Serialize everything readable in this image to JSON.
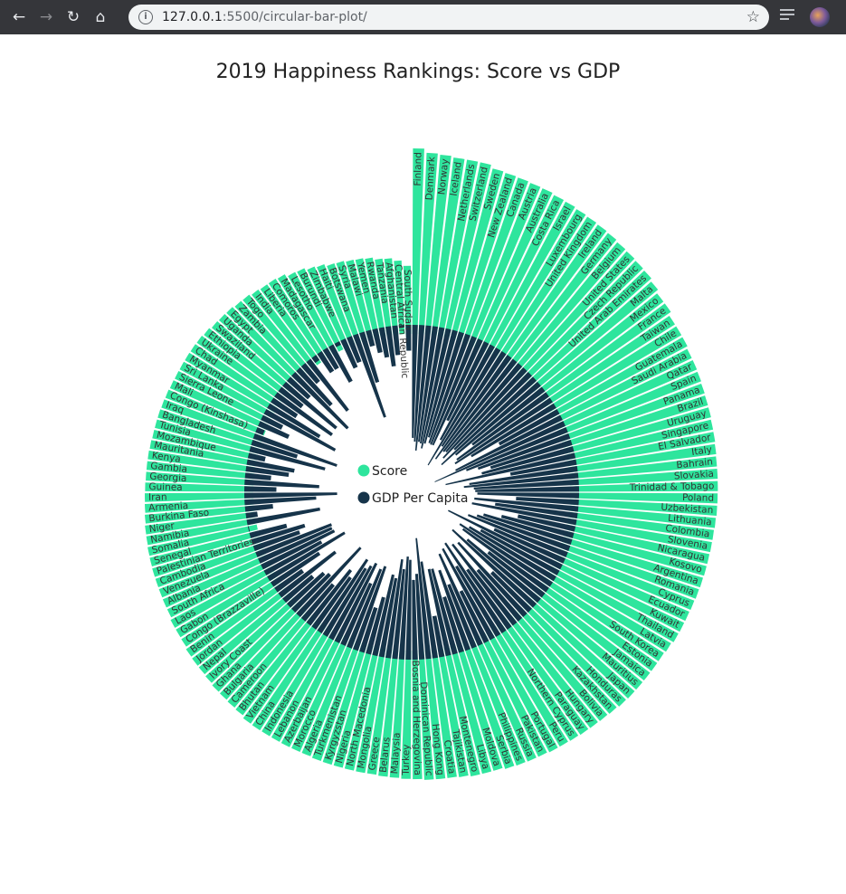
{
  "browser": {
    "url_host": "127.0.0.1",
    "url_path": ":5500/circular-bar-plot/"
  },
  "chart_data": {
    "type": "bar",
    "title": "2019 Happiness Rankings: Score vs GDP",
    "colors": {
      "score": "#2ee59d",
      "gdp": "#16344a"
    },
    "series": [
      {
        "name": "Score",
        "key": "score"
      },
      {
        "name": "GDP Per Capita",
        "key": "gdp"
      }
    ],
    "countries": [
      {
        "name": "Finland",
        "score": 7.769,
        "gdp": 1.34
      },
      {
        "name": "Denmark",
        "score": 7.6,
        "gdp": 1.383
      },
      {
        "name": "Norway",
        "score": 7.554,
        "gdp": 1.488
      },
      {
        "name": "Iceland",
        "score": 7.494,
        "gdp": 1.38
      },
      {
        "name": "Netherlands",
        "score": 7.488,
        "gdp": 1.396
      },
      {
        "name": "Switzerland",
        "score": 7.48,
        "gdp": 1.452
      },
      {
        "name": "Sweden",
        "score": 7.343,
        "gdp": 1.387
      },
      {
        "name": "New Zealand",
        "score": 7.307,
        "gdp": 1.303
      },
      {
        "name": "Canada",
        "score": 7.278,
        "gdp": 1.365
      },
      {
        "name": "Austria",
        "score": 7.246,
        "gdp": 1.376
      },
      {
        "name": "Australia",
        "score": 7.228,
        "gdp": 1.372
      },
      {
        "name": "Costa Rica",
        "score": 7.167,
        "gdp": 1.034
      },
      {
        "name": "Israel",
        "score": 7.139,
        "gdp": 1.276
      },
      {
        "name": "Luxembourg",
        "score": 7.09,
        "gdp": 1.609
      },
      {
        "name": "United Kingdom",
        "score": 7.054,
        "gdp": 1.333
      },
      {
        "name": "Ireland",
        "score": 7.021,
        "gdp": 1.499
      },
      {
        "name": "Germany",
        "score": 6.985,
        "gdp": 1.373
      },
      {
        "name": "Belgium",
        "score": 6.923,
        "gdp": 1.356
      },
      {
        "name": "United States",
        "score": 6.892,
        "gdp": 1.433
      },
      {
        "name": "Czech Republic",
        "score": 6.852,
        "gdp": 1.269
      },
      {
        "name": "United Arab Emirates",
        "score": 6.825,
        "gdp": 1.503
      },
      {
        "name": "Malta",
        "score": 6.726,
        "gdp": 1.3
      },
      {
        "name": "Mexico",
        "score": 6.595,
        "gdp": 1.07
      },
      {
        "name": "France",
        "score": 6.592,
        "gdp": 1.324
      },
      {
        "name": "Taiwan",
        "score": 6.446,
        "gdp": 1.368
      },
      {
        "name": "Chile",
        "score": 6.444,
        "gdp": 1.159
      },
      {
        "name": "Guatemala",
        "score": 6.436,
        "gdp": 0.8
      },
      {
        "name": "Saudi Arabia",
        "score": 6.375,
        "gdp": 1.403
      },
      {
        "name": "Qatar",
        "score": 6.374,
        "gdp": 1.684
      },
      {
        "name": "Spain",
        "score": 6.354,
        "gdp": 1.286
      },
      {
        "name": "Panama",
        "score": 6.321,
        "gdp": 1.149
      },
      {
        "name": "Brazil",
        "score": 6.3,
        "gdp": 1.004
      },
      {
        "name": "Uruguay",
        "score": 6.293,
        "gdp": 1.124
      },
      {
        "name": "Singapore",
        "score": 6.262,
        "gdp": 1.572
      },
      {
        "name": "El Salvador",
        "score": 6.253,
        "gdp": 0.794
      },
      {
        "name": "Italy",
        "score": 6.223,
        "gdp": 1.294
      },
      {
        "name": "Bahrain",
        "score": 6.199,
        "gdp": 1.362
      },
      {
        "name": "Slovakia",
        "score": 6.198,
        "gdp": 1.246
      },
      {
        "name": "Trinidad & Tobago",
        "score": 6.192,
        "gdp": 1.231
      },
      {
        "name": "Poland",
        "score": 6.182,
        "gdp": 1.206
      },
      {
        "name": "Uzbekistan",
        "score": 6.174,
        "gdp": 0.745
      },
      {
        "name": "Lithuania",
        "score": 6.149,
        "gdp": 1.238
      },
      {
        "name": "Colombia",
        "score": 6.125,
        "gdp": 0.985
      },
      {
        "name": "Slovenia",
        "score": 6.118,
        "gdp": 1.258
      },
      {
        "name": "Nicaragua",
        "score": 6.105,
        "gdp": 0.694
      },
      {
        "name": "Kosovo",
        "score": 6.1,
        "gdp": 0.882
      },
      {
        "name": "Argentina",
        "score": 6.086,
        "gdp": 1.092
      },
      {
        "name": "Romania",
        "score": 6.07,
        "gdp": 1.162
      },
      {
        "name": "Cyprus",
        "score": 6.046,
        "gdp": 1.263
      },
      {
        "name": "Ecuador",
        "score": 6.028,
        "gdp": 0.912
      },
      {
        "name": "Kuwait",
        "score": 6.021,
        "gdp": 1.5
      },
      {
        "name": "Thailand",
        "score": 6.008,
        "gdp": 1.05
      },
      {
        "name": "Latvia",
        "score": 5.94,
        "gdp": 1.187
      },
      {
        "name": "South Korea",
        "score": 5.895,
        "gdp": 1.301
      },
      {
        "name": "Estonia",
        "score": 5.893,
        "gdp": 1.237
      },
      {
        "name": "Jamaica",
        "score": 5.89,
        "gdp": 0.831
      },
      {
        "name": "Mauritius",
        "score": 5.888,
        "gdp": 1.12
      },
      {
        "name": "Japan",
        "score": 5.886,
        "gdp": 1.327
      },
      {
        "name": "Honduras",
        "score": 5.86,
        "gdp": 0.642
      },
      {
        "name": "Kazakhstan",
        "score": 5.809,
        "gdp": 1.173
      },
      {
        "name": "Bolivia",
        "score": 5.779,
        "gdp": 0.776
      },
      {
        "name": "Hungary",
        "score": 5.758,
        "gdp": 1.201
      },
      {
        "name": "Paraguay",
        "score": 5.743,
        "gdp": 0.855
      },
      {
        "name": "Northern Cyprus",
        "score": 5.718,
        "gdp": 1.263
      },
      {
        "name": "Peru",
        "score": 5.697,
        "gdp": 0.96
      },
      {
        "name": "Portugal",
        "score": 5.693,
        "gdp": 1.221
      },
      {
        "name": "Pakistan",
        "score": 5.653,
        "gdp": 0.677
      },
      {
        "name": "Russia",
        "score": 5.648,
        "gdp": 1.183
      },
      {
        "name": "Philippines",
        "score": 5.631,
        "gdp": 0.807
      },
      {
        "name": "Serbia",
        "score": 5.603,
        "gdp": 1.004
      },
      {
        "name": "Moldova",
        "score": 5.529,
        "gdp": 0.685
      },
      {
        "name": "Libya",
        "score": 5.525,
        "gdp": 1.044
      },
      {
        "name": "Montenegro",
        "score": 5.523,
        "gdp": 1.051
      },
      {
        "name": "Tajikistan",
        "score": 5.467,
        "gdp": 0.493
      },
      {
        "name": "Croatia",
        "score": 5.432,
        "gdp": 1.155
      },
      {
        "name": "Hong Kong",
        "score": 5.43,
        "gdp": 1.438
      },
      {
        "name": "Dominican Republic",
        "score": 5.425,
        "gdp": 1.015
      },
      {
        "name": "Bosnia and Herzegovina",
        "score": 5.386,
        "gdp": 0.945
      },
      {
        "name": "Turkey",
        "score": 5.373,
        "gdp": 1.183
      },
      {
        "name": "Malaysia",
        "score": 5.339,
        "gdp": 1.221
      },
      {
        "name": "Belarus",
        "score": 5.323,
        "gdp": 1.067
      },
      {
        "name": "Greece",
        "score": 5.287,
        "gdp": 1.181
      },
      {
        "name": "Mongolia",
        "score": 5.285,
        "gdp": 0.948
      },
      {
        "name": "North Macedonia",
        "score": 5.274,
        "gdp": 0.983
      },
      {
        "name": "Nigeria",
        "score": 5.265,
        "gdp": 0.696
      },
      {
        "name": "Kyrgyzstan",
        "score": 5.261,
        "gdp": 0.551
      },
      {
        "name": "Turkmenistan",
        "score": 5.247,
        "gdp": 1.052
      },
      {
        "name": "Algeria",
        "score": 5.211,
        "gdp": 1.002
      },
      {
        "name": "Morocco",
        "score": 5.208,
        "gdp": 0.801
      },
      {
        "name": "Azerbaijan",
        "score": 5.208,
        "gdp": 1.043
      },
      {
        "name": "Lebanon",
        "score": 5.197,
        "gdp": 0.987
      },
      {
        "name": "Indonesia",
        "score": 5.192,
        "gdp": 0.931
      },
      {
        "name": "China",
        "score": 5.191,
        "gdp": 1.029
      },
      {
        "name": "Vietnam",
        "score": 5.175,
        "gdp": 0.741
      },
      {
        "name": "Bhutan",
        "score": 5.082,
        "gdp": 0.813
      },
      {
        "name": "Cameroon",
        "score": 5.044,
        "gdp": 0.549
      },
      {
        "name": "Bulgaria",
        "score": 5.011,
        "gdp": 1.092
      },
      {
        "name": "Ghana",
        "score": 4.996,
        "gdp": 0.611
      },
      {
        "name": "Ivory Coast",
        "score": 4.944,
        "gdp": 0.569
      },
      {
        "name": "Nepal",
        "score": 4.913,
        "gdp": 0.446
      },
      {
        "name": "Jordan",
        "score": 4.906,
        "gdp": 0.837
      },
      {
        "name": "Benin",
        "score": 4.883,
        "gdp": 0.393
      },
      {
        "name": "Congo (Brazzaville)",
        "score": 4.812,
        "gdp": 0.673
      },
      {
        "name": "Gabon",
        "score": 4.799,
        "gdp": 1.057
      },
      {
        "name": "Laos",
        "score": 4.796,
        "gdp": 0.764
      },
      {
        "name": "South Africa",
        "score": 4.722,
        "gdp": 0.96
      },
      {
        "name": "Albania",
        "score": 4.719,
        "gdp": 0.947
      },
      {
        "name": "Venezuela",
        "score": 4.707,
        "gdp": 0.96
      },
      {
        "name": "Cambodia",
        "score": 4.7,
        "gdp": 0.574
      },
      {
        "name": "Palestinian Territories",
        "score": 4.696,
        "gdp": 0.657
      },
      {
        "name": "Senegal",
        "score": 4.681,
        "gdp": 0.45
      },
      {
        "name": "Somalia",
        "score": 4.668,
        "gdp": 0.0
      },
      {
        "name": "Namibia",
        "score": 4.639,
        "gdp": 0.879
      },
      {
        "name": "Niger",
        "score": 4.628,
        "gdp": 0.138
      },
      {
        "name": "Burkina Faso",
        "score": 4.587,
        "gdp": 0.331
      },
      {
        "name": "Armenia",
        "score": 4.559,
        "gdp": 0.85
      },
      {
        "name": "Iran",
        "score": 4.548,
        "gdp": 1.1
      },
      {
        "name": "Guinea",
        "score": 4.534,
        "gdp": 0.38
      },
      {
        "name": "Georgia",
        "score": 4.519,
        "gdp": 0.886
      },
      {
        "name": "Gambia",
        "score": 4.516,
        "gdp": 0.308
      },
      {
        "name": "Kenya",
        "score": 4.509,
        "gdp": 0.512
      },
      {
        "name": "Mauritania",
        "score": 4.49,
        "gdp": 0.57
      },
      {
        "name": "Mozambique",
        "score": 4.466,
        "gdp": 0.204
      },
      {
        "name": "Tunisia",
        "score": 4.461,
        "gdp": 0.921
      },
      {
        "name": "Bangladesh",
        "score": 4.456,
        "gdp": 0.562
      },
      {
        "name": "Iraq",
        "score": 4.437,
        "gdp": 1.043
      },
      {
        "name": "Congo (Kinshasa)",
        "score": 4.418,
        "gdp": 0.094
      },
      {
        "name": "Mali",
        "score": 4.39,
        "gdp": 0.385
      },
      {
        "name": "Sierra Leone",
        "score": 4.374,
        "gdp": 0.268
      },
      {
        "name": "Sri Lanka",
        "score": 4.366,
        "gdp": 0.949
      },
      {
        "name": "Myanmar",
        "score": 4.36,
        "gdp": 0.71
      },
      {
        "name": "Chad",
        "score": 4.35,
        "gdp": 0.35
      },
      {
        "name": "Ukraine",
        "score": 4.332,
        "gdp": 0.82
      },
      {
        "name": "Ethiopia",
        "score": 4.286,
        "gdp": 0.336
      },
      {
        "name": "Swaziland",
        "score": 4.212,
        "gdp": 0.811
      },
      {
        "name": "Uganda",
        "score": 4.189,
        "gdp": 0.332
      },
      {
        "name": "Egypt",
        "score": 4.166,
        "gdp": 0.913
      },
      {
        "name": "Zambia",
        "score": 4.107,
        "gdp": 0.578
      },
      {
        "name": "Togo",
        "score": 4.085,
        "gdp": 0.275
      },
      {
        "name": "India",
        "score": 4.015,
        "gdp": 0.755
      },
      {
        "name": "Liberia",
        "score": 3.975,
        "gdp": 0.073
      },
      {
        "name": "Comoros",
        "score": 3.973,
        "gdp": 0.274
      },
      {
        "name": "Madagascar",
        "score": 3.933,
        "gdp": 0.274
      },
      {
        "name": "Lesotho",
        "score": 3.802,
        "gdp": 0.489
      },
      {
        "name": "Burundi",
        "score": 3.775,
        "gdp": 0.046
      },
      {
        "name": "Zimbabwe",
        "score": 3.663,
        "gdp": 0.366
      },
      {
        "name": "Haiti",
        "score": 3.597,
        "gdp": 0.323
      },
      {
        "name": "Botswana",
        "score": 3.488,
        "gdp": 1.041
      },
      {
        "name": "Syria",
        "score": 3.462,
        "gdp": 0.619
      },
      {
        "name": "Malawi",
        "score": 3.41,
        "gdp": 0.191
      },
      {
        "name": "Yemen",
        "score": 3.38,
        "gdp": 0.287
      },
      {
        "name": "Rwanda",
        "score": 3.334,
        "gdp": 0.359
      },
      {
        "name": "Tanzania",
        "score": 3.231,
        "gdp": 0.476
      },
      {
        "name": "Afghanistan",
        "score": 3.203,
        "gdp": 0.35
      },
      {
        "name": "Central African Republic",
        "score": 3.083,
        "gdp": 0.026
      },
      {
        "name": "South Sudan",
        "score": 2.853,
        "gdp": 0.306
      }
    ]
  }
}
